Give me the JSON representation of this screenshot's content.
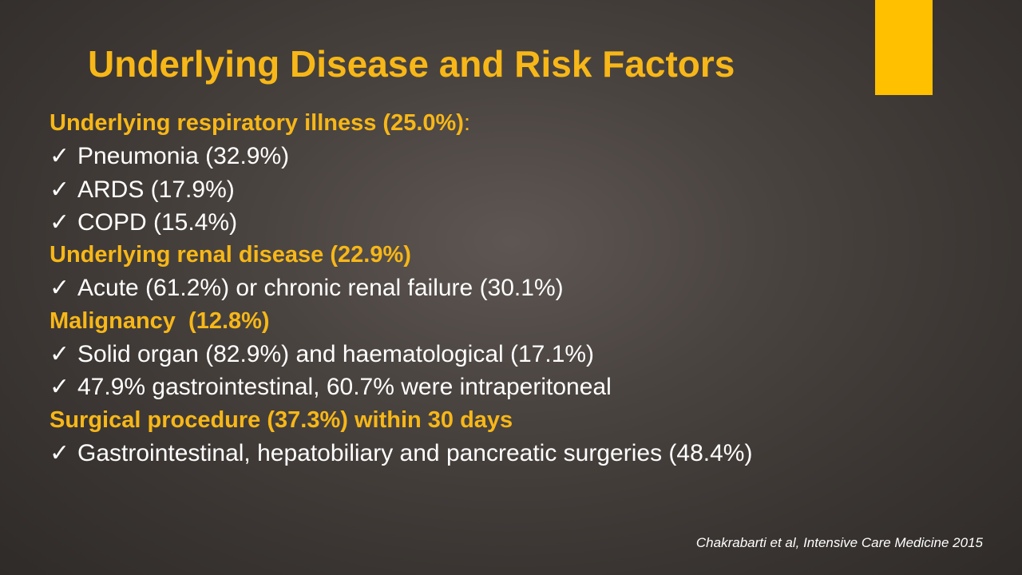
{
  "slide": {
    "title": "Underlying Disease and Risk Factors",
    "accent_color": "#ffc000",
    "heading_color": "#f7b718",
    "check_glyph": "✓",
    "sections": [
      {
        "heading": "Underlying respiratory illness (25.0%)",
        "suffix": ":",
        "items": [
          "Pneumonia (32.9%)",
          "ARDS (17.9%)",
          "COPD (15.4%)"
        ]
      },
      {
        "heading": "Underlying renal disease (22.9%)",
        "suffix": "",
        "items": [
          "Acute (61.2%) or chronic renal failure (30.1%)"
        ]
      },
      {
        "heading": "Malignancy  (12.8%)",
        "suffix": "",
        "items": [
          "Solid organ (82.9%) and haematological (17.1%)",
          "47.9% gastrointestinal, 60.7% were intraperitoneal"
        ]
      },
      {
        "heading": "Surgical procedure (37.3%) within 30 days",
        "suffix": "",
        "items": [
          "Gastrointestinal, hepatobiliary and pancreatic surgeries (48.4%)"
        ]
      }
    ],
    "citation": "Chakrabarti et al, Intensive Care Medicine 2015"
  }
}
